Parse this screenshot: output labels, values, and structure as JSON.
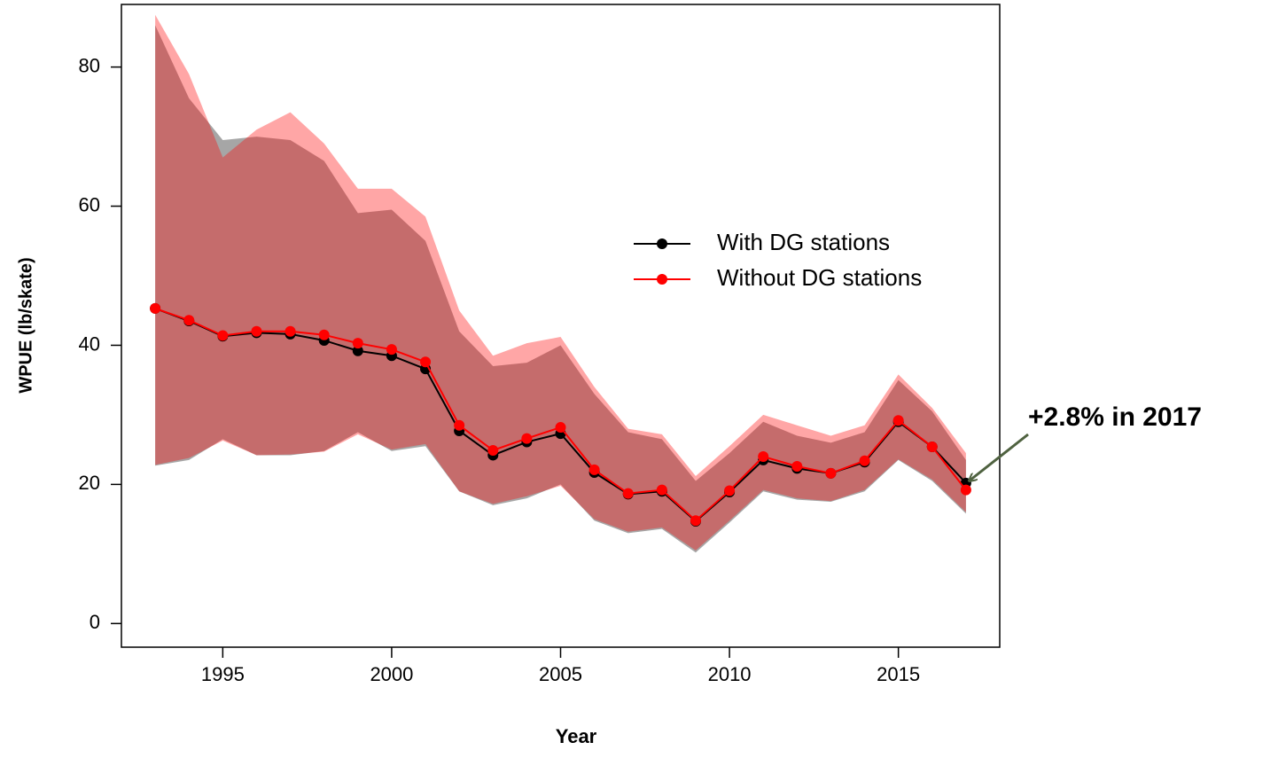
{
  "chart_data": {
    "type": "line",
    "x": [
      1993,
      1994,
      1995,
      1996,
      1997,
      1998,
      1999,
      2000,
      2001,
      2002,
      2003,
      2004,
      2005,
      2006,
      2007,
      2008,
      2009,
      2010,
      2011,
      2012,
      2013,
      2014,
      2015,
      2016,
      2017
    ],
    "series": [
      {
        "name": "With DG stations",
        "color": "#000000",
        "band_color": "#a6a6a6",
        "values": [
          45.3,
          43.5,
          41.3,
          41.8,
          41.6,
          40.7,
          39.2,
          38.5,
          36.6,
          27.7,
          24.2,
          26.1,
          27.3,
          21.7,
          18.6,
          19.0,
          14.7,
          18.9,
          23.5,
          22.3,
          21.6,
          23.2,
          29.0,
          25.4,
          20.2
        ],
        "upper": [
          86,
          75.5,
          69.5,
          70,
          69.5,
          66.5,
          59,
          59.5,
          55,
          42,
          37,
          37.5,
          40,
          33,
          27.5,
          26.5,
          20.5,
          24.5,
          29,
          27,
          26,
          27.5,
          35,
          30.5,
          23.5
        ],
        "lower": [
          22.7,
          23.5,
          26.5,
          24.2,
          24.2,
          24.8,
          27.5,
          24.8,
          25.5,
          19,
          17,
          18,
          20,
          14.8,
          13,
          13.6,
          10.2,
          14.5,
          19,
          17.8,
          17.5,
          19,
          23.5,
          20.5,
          15.8
        ]
      },
      {
        "name": "Without DG stations",
        "color": "#ff0000",
        "band_color": "#ff0000",
        "values": [
          45.3,
          43.6,
          41.4,
          42.0,
          42.0,
          41.5,
          40.3,
          39.4,
          37.6,
          28.5,
          24.9,
          26.6,
          28.2,
          22.1,
          18.7,
          19.2,
          14.8,
          19.1,
          24.0,
          22.6,
          21.6,
          23.4,
          29.2,
          25.4,
          19.2
        ],
        "upper": [
          87.5,
          79,
          67,
          71,
          73.5,
          69,
          62.5,
          62.5,
          58.5,
          45,
          38.5,
          40.3,
          41.2,
          34,
          28,
          27.2,
          21.2,
          25.5,
          30,
          28.5,
          27,
          28.5,
          35.8,
          31,
          24.5
        ],
        "lower": [
          22.8,
          23.8,
          26.3,
          24.2,
          24.3,
          24.7,
          27.2,
          25,
          25.8,
          19,
          17.2,
          18.3,
          19.8,
          15,
          13.2,
          13.8,
          10.5,
          14.8,
          19.2,
          18,
          17.6,
          19.2,
          23.6,
          20.7,
          16
        ]
      }
    ],
    "xlabel": "Year",
    "ylabel": "WPUE (lb/skate)",
    "xlim": [
      1992,
      2018
    ],
    "ylim": [
      -3.4,
      89
    ],
    "xticks": [
      1995,
      2000,
      2005,
      2010,
      2015
    ],
    "yticks": [
      0,
      20,
      40,
      60,
      80
    ],
    "legend_position": "center-right",
    "annotation": "+2.8% in 2017"
  }
}
